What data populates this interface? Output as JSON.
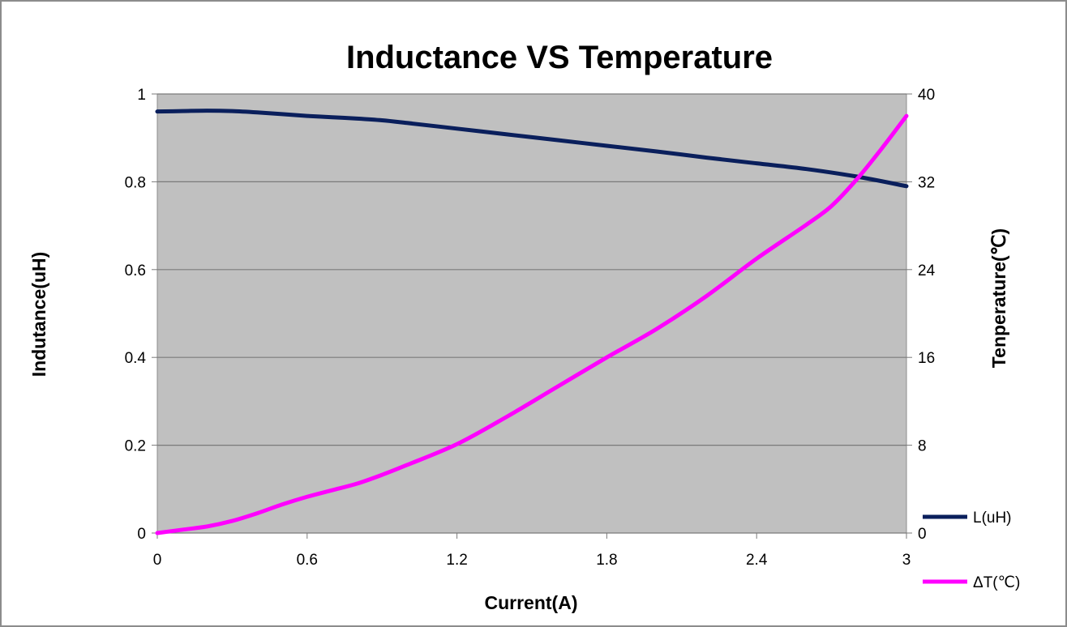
{
  "chart_data": {
    "type": "line",
    "title": "Inductance  VS  Temperature",
    "xlabel": "Current(A)",
    "ylabel": "Indutance(uH)",
    "y2label": "Tenperature(℃)",
    "xlim": [
      0,
      3
    ],
    "ylim": [
      0,
      1
    ],
    "y2lim": [
      0,
      40
    ],
    "x_ticks": [
      "0",
      "0.6",
      "1.2",
      "1.8",
      "2.4",
      "3"
    ],
    "y_ticks": [
      "0",
      "0.2",
      "0.4",
      "0.6",
      "0.8",
      "1"
    ],
    "y2_ticks": [
      "0",
      "8",
      "16",
      "24",
      "32",
      "40"
    ],
    "grid": true,
    "legend_position": "bottom-right",
    "plot_background": "#c0c0c0",
    "series": [
      {
        "name": "L(uH)",
        "axis": "left",
        "color": "#0a1f5c",
        "x": [
          0,
          0.1,
          0.2,
          0.3,
          0.4,
          0.5,
          0.6,
          0.7,
          0.8,
          0.9,
          1.0,
          1.2,
          1.4,
          1.6,
          1.8,
          2.0,
          2.2,
          2.4,
          2.6,
          2.8,
          3.0
        ],
        "values": [
          0.96,
          0.961,
          0.962,
          0.961,
          0.958,
          0.954,
          0.95,
          0.947,
          0.944,
          0.94,
          0.934,
          0.921,
          0.908,
          0.895,
          0.882,
          0.869,
          0.855,
          0.842,
          0.829,
          0.812,
          0.79
        ]
      },
      {
        "name": "ΔT(℃)",
        "axis": "right",
        "color": "#ff00ff",
        "x": [
          0,
          0.1,
          0.2,
          0.3,
          0.4,
          0.5,
          0.6,
          0.7,
          0.8,
          0.9,
          1.0,
          1.2,
          1.4,
          1.6,
          1.8,
          2.0,
          2.2,
          2.4,
          2.6,
          2.7,
          2.8,
          2.9,
          3.0
        ],
        "values": [
          0,
          0.3,
          0.6,
          1.1,
          1.8,
          2.6,
          3.3,
          3.9,
          4.5,
          5.3,
          6.2,
          8.1,
          10.6,
          13.3,
          16.0,
          18.6,
          21.6,
          25.0,
          28.1,
          29.8,
          32.2,
          35.0,
          38.0
        ]
      }
    ]
  }
}
